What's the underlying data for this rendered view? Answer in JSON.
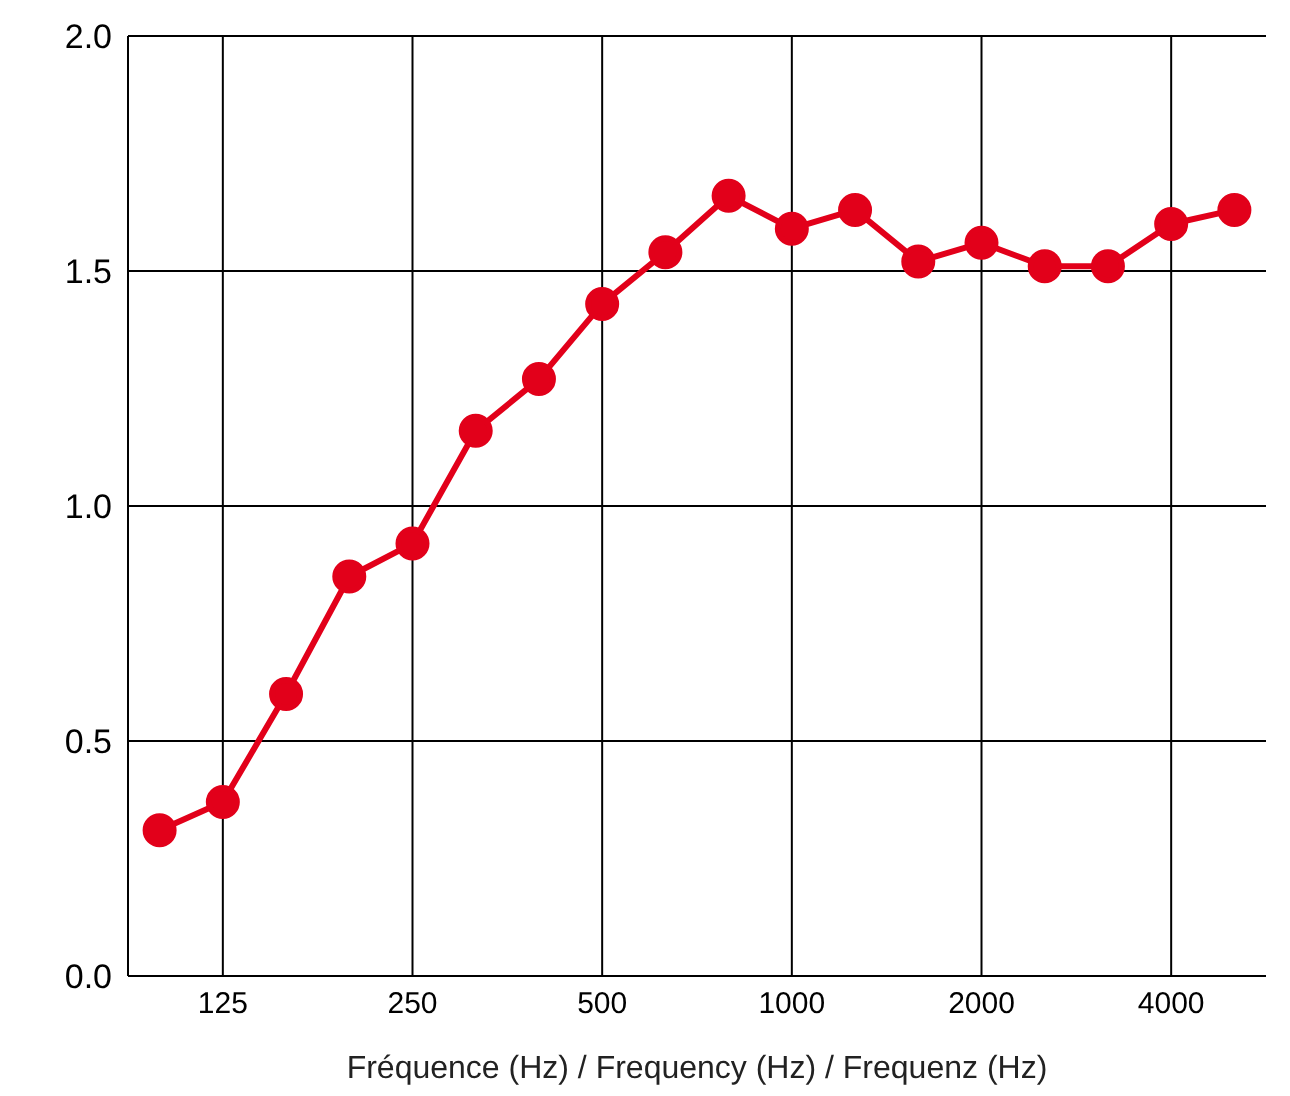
{
  "chart_data": {
    "type": "line",
    "xlabel": "Fréquence (Hz) / Frequency (Hz) / Frequenz (Hz)",
    "categories": [
      null,
      "125",
      null,
      null,
      "250",
      null,
      null,
      "500",
      null,
      null,
      "1000",
      null,
      null,
      "2000",
      null,
      null,
      "4000",
      null
    ],
    "series": [
      {
        "color": "#e2001a",
        "values": [
          0.31,
          0.37,
          0.6,
          0.85,
          0.92,
          1.16,
          1.27,
          1.43,
          1.54,
          1.66,
          1.59,
          1.63,
          1.52,
          1.56,
          1.51,
          1.51,
          1.6,
          1.63
        ]
      }
    ],
    "ylim": [
      0,
      2
    ],
    "yticks": [
      {
        "value": 0,
        "label": "0.0"
      },
      {
        "value": 0.5,
        "label": "0.5"
      },
      {
        "value": 1,
        "label": "1.0"
      },
      {
        "value": 1.5,
        "label": "1.5"
      },
      {
        "value": 2,
        "label": "2.0"
      }
    ],
    "grid": true,
    "marker": "circle",
    "line_style": "solid"
  }
}
